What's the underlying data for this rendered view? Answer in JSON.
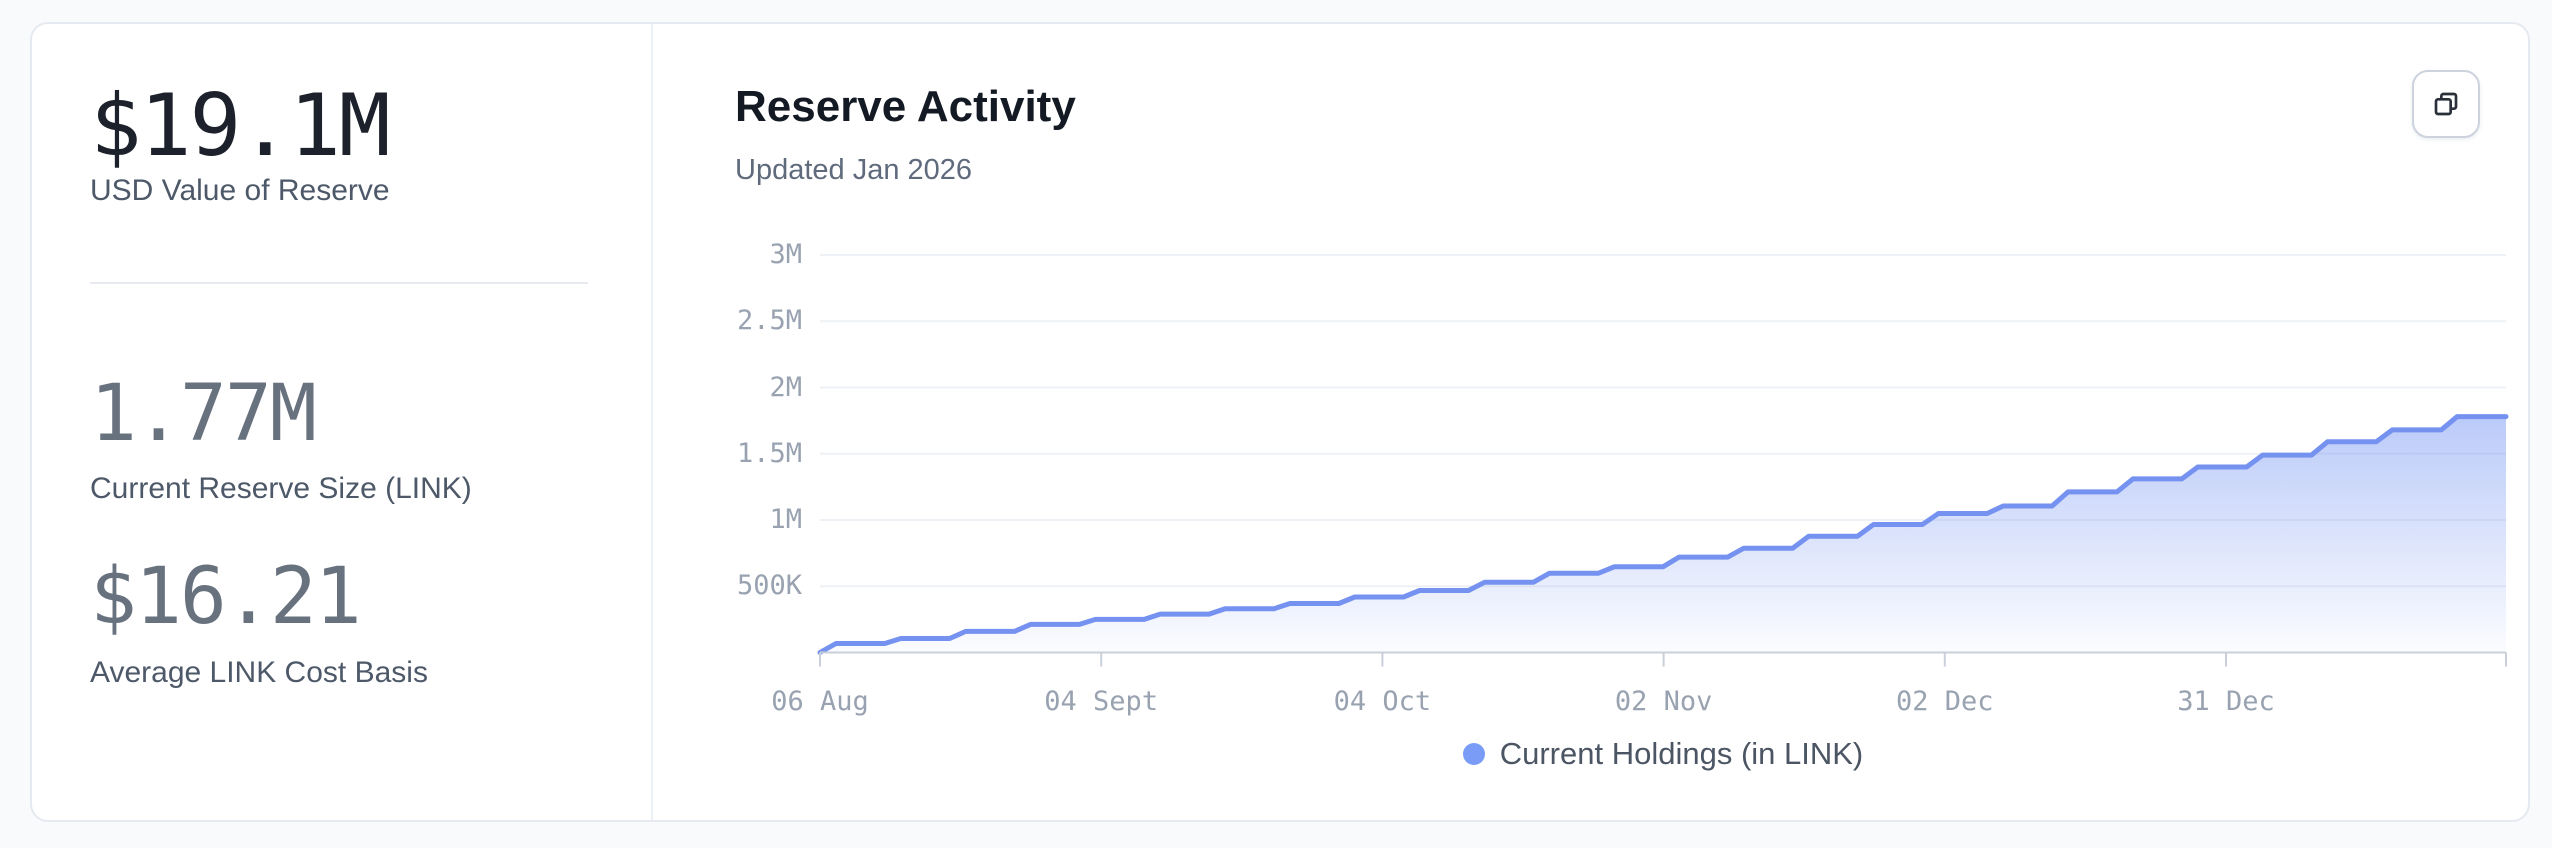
{
  "left_panel": {
    "stats": [
      {
        "value": "$19.1M",
        "label": "USD Value of Reserve"
      },
      {
        "value": "1.77M",
        "label": "Current Reserve Size (LINK)"
      },
      {
        "value": "$16.21",
        "label": "Average LINK Cost Basis"
      }
    ]
  },
  "chart_panel": {
    "title": "Reserve Activity",
    "updated": "Updated Jan 2026",
    "copy_button_icon": "copy-icon"
  },
  "colors": {
    "accent_line": "#7592f0",
    "legend_dot": "#7b9cf6",
    "fill_top": "#7d9bf3",
    "grid_line": "#eef1f6",
    "axis_line": "#c8d0da",
    "axis_text": "#99a2b0"
  },
  "chart_data": {
    "type": "area",
    "title": "Reserve Activity",
    "subtitle": "Updated Jan 2026",
    "xlabel": "",
    "ylabel": "",
    "ylim": [
      0,
      3000000
    ],
    "grid": "horizontal",
    "legend_position": "bottom-center",
    "y_ticks": [
      {
        "label": "3M",
        "value": 3000000
      },
      {
        "label": "2.5M",
        "value": 2500000
      },
      {
        "label": "2M",
        "value": 2000000
      },
      {
        "label": "1.5M",
        "value": 1500000
      },
      {
        "label": "1M",
        "value": 1000000
      },
      {
        "label": "500K",
        "value": 500000
      }
    ],
    "x_ticks": [
      "06 Aug",
      "04 Sept",
      "04 Oct",
      "02 Nov",
      "02 Dec",
      "31 Dec"
    ],
    "legend": [
      "Current Holdings (in LINK)"
    ],
    "series": [
      {
        "name": "Current Holdings (in LINK)",
        "cadence": "weekly step increases, Aug 2025 - Jan 2026",
        "values": [
          68000,
          106000,
          159000,
          212000,
          250000,
          290000,
          330000,
          370000,
          419000,
          468000,
          530000,
          598000,
          647000,
          720000,
          787000,
          877000,
          966000,
          1049000,
          1106000,
          1212000,
          1310000,
          1400000,
          1490000,
          1590000,
          1680000,
          1780000
        ]
      }
    ]
  }
}
